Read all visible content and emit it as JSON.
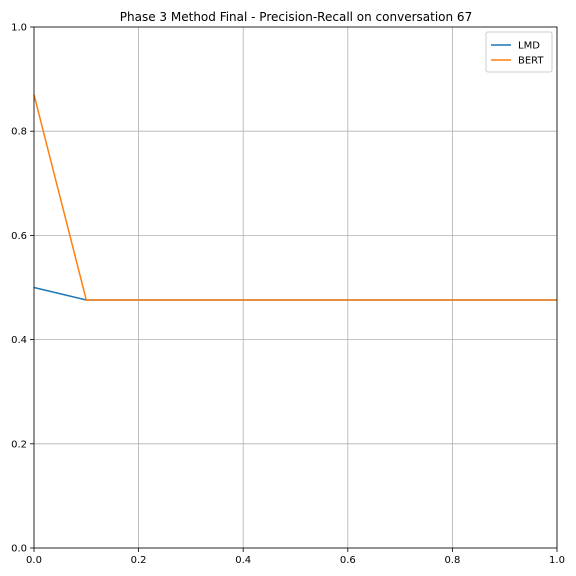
{
  "chart_data": {
    "type": "line",
    "title": "Phase 3 Method Final - Precision-Recall on conversation 67",
    "xlabel": "",
    "ylabel": "",
    "xlim": [
      0,
      1
    ],
    "ylim": [
      0,
      1
    ],
    "xticks": [
      "0.0",
      "0.2",
      "0.4",
      "0.6",
      "0.8",
      "1.0"
    ],
    "yticks": [
      "0.0",
      "0.2",
      "0.4",
      "0.6",
      "0.8",
      "1.0"
    ],
    "grid": true,
    "legend_position": "top-right",
    "series": [
      {
        "name": "LMD",
        "color": "#1f77b4",
        "x": [
          0.0,
          0.1,
          0.2,
          0.3,
          0.4,
          0.5,
          0.6,
          0.7,
          0.8,
          0.9,
          1.0
        ],
        "y": [
          0.5,
          0.476,
          0.476,
          0.476,
          0.476,
          0.476,
          0.476,
          0.476,
          0.476,
          0.476,
          0.476
        ]
      },
      {
        "name": "BERT",
        "color": "#ff7f0e",
        "x": [
          0.0,
          0.1,
          0.2,
          0.3,
          0.4,
          0.5,
          0.6,
          0.7,
          0.8,
          0.9,
          1.0
        ],
        "y": [
          0.87,
          0.476,
          0.476,
          0.476,
          0.476,
          0.476,
          0.476,
          0.476,
          0.476,
          0.476,
          0.476
        ]
      }
    ]
  }
}
